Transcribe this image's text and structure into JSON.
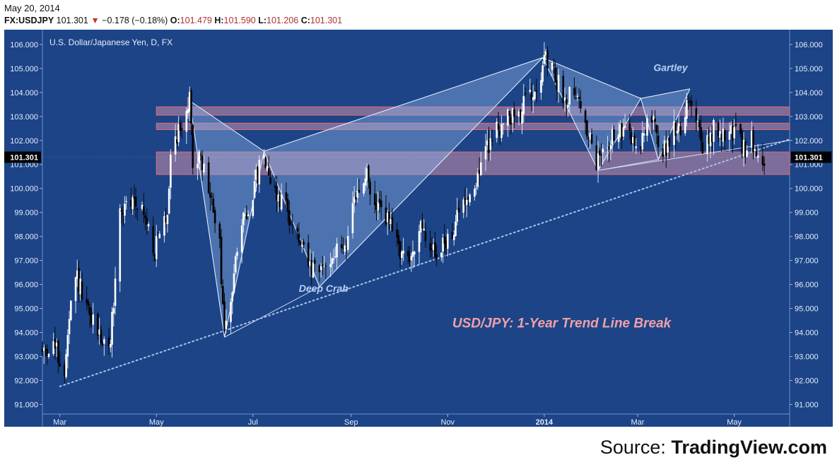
{
  "header": {
    "date": "May 20, 2014",
    "symbol": "FX:USDJPY",
    "last": "101.301",
    "change": "−0.178 (−0.18%)",
    "o_label": "O:",
    "o": "101.479",
    "h_label": "H:",
    "h": "101.590",
    "l_label": "L:",
    "l": "101.206",
    "c_label": "C:",
    "c": "101.301"
  },
  "source": {
    "prefix": "Source: ",
    "brand": "TradingView.com"
  },
  "colors": {
    "background": "#1c4487",
    "up_candle": "#ffffff",
    "down_candle": "#000000",
    "zone_fill": "#f2a0b4",
    "zone_border": "#e06a78",
    "pattern_fill": "#8fb4e6",
    "headline": "#f0a0a8",
    "last_price_bg": "#000000"
  },
  "chart_data": {
    "type": "candlestick",
    "title": "U.S. Dollar/Japanese Yen, D, FX",
    "headline": "USD/JPY: 1-Year Trend Line Break",
    "x_ticks": [
      "Mar",
      "May",
      "Jul",
      "Sep",
      "Nov",
      "2014",
      "Mar",
      "May"
    ],
    "x_tick_dates": [
      "2013-03-01",
      "2013-05-01",
      "2013-07-01",
      "2013-09-01",
      "2013-11-01",
      "2014-01-01",
      "2014-03-01",
      "2014-05-01"
    ],
    "x_range": [
      "2013-02-18",
      "2014-06-05"
    ],
    "y_ticks": [
      "91.000",
      "92.000",
      "93.000",
      "94.000",
      "95.000",
      "96.000",
      "97.000",
      "98.000",
      "99.000",
      "100.000",
      "101.000",
      "102.000",
      "103.000",
      "104.000",
      "105.000",
      "106.000"
    ],
    "ylim": [
      90.6,
      106.35
    ],
    "last_price": "101.301",
    "grid": false,
    "trend_points": [
      [
        "2013-02-18",
        93.2
      ],
      [
        "2013-02-25",
        93.5
      ],
      [
        "2013-03-04",
        92.3
      ],
      [
        "2013-03-08",
        95.0
      ],
      [
        "2013-03-12",
        96.3
      ],
      [
        "2013-03-18",
        94.8
      ],
      [
        "2013-03-25",
        94.1
      ],
      [
        "2013-04-01",
        93.1
      ],
      [
        "2013-04-04",
        95.3
      ],
      [
        "2013-04-08",
        99.0
      ],
      [
        "2013-04-12",
        99.2
      ],
      [
        "2013-04-19",
        99.6
      ],
      [
        "2013-04-25",
        98.5
      ],
      [
        "2013-04-30",
        97.4
      ],
      [
        "2013-05-08",
        99.0
      ],
      [
        "2013-05-10",
        101.6
      ],
      [
        "2013-05-15",
        102.4
      ],
      [
        "2013-05-22",
        103.6
      ],
      [
        "2013-05-24",
        101.3
      ],
      [
        "2013-05-30",
        101.0
      ],
      [
        "2013-06-05",
        99.4
      ],
      [
        "2013-06-10",
        97.5
      ],
      [
        "2013-06-13",
        94.0
      ],
      [
        "2013-06-17",
        95.0
      ],
      [
        "2013-06-20",
        97.6
      ],
      [
        "2013-06-28",
        99.2
      ],
      [
        "2013-07-05",
        100.8
      ],
      [
        "2013-07-08",
        101.5
      ],
      [
        "2013-07-15",
        99.8
      ],
      [
        "2013-07-22",
        99.3
      ],
      [
        "2013-07-29",
        97.9
      ],
      [
        "2013-08-07",
        96.5
      ],
      [
        "2013-08-12",
        96.5
      ],
      [
        "2013-08-20",
        97.2
      ],
      [
        "2013-08-28",
        97.6
      ],
      [
        "2013-09-05",
        99.8
      ],
      [
        "2013-09-11",
        100.5
      ],
      [
        "2013-09-16",
        99.1
      ],
      [
        "2013-09-20",
        99.3
      ],
      [
        "2013-09-27",
        98.2
      ],
      [
        "2013-10-07",
        96.8
      ],
      [
        "2013-10-14",
        98.3
      ],
      [
        "2013-10-22",
        97.5
      ],
      [
        "2013-10-28",
        97.4
      ],
      [
        "2013-11-05",
        98.4
      ],
      [
        "2013-11-12",
        99.6
      ],
      [
        "2013-11-18",
        100.1
      ],
      [
        "2013-11-25",
        101.6
      ],
      [
        "2013-12-03",
        102.6
      ],
      [
        "2013-12-10",
        102.9
      ],
      [
        "2013-12-17",
        103.2
      ],
      [
        "2013-12-24",
        104.1
      ],
      [
        "2014-01-02",
        105.3
      ],
      [
        "2014-01-08",
        104.6
      ],
      [
        "2014-01-14",
        103.7
      ],
      [
        "2014-01-20",
        104.3
      ],
      [
        "2014-01-27",
        102.6
      ],
      [
        "2014-02-03",
        101.0
      ],
      [
        "2014-02-10",
        102.0
      ],
      [
        "2014-02-17",
        102.3
      ],
      [
        "2014-02-24",
        102.2
      ],
      [
        "2014-03-03",
        101.6
      ],
      [
        "2014-03-07",
        103.1
      ],
      [
        "2014-03-12",
        102.5
      ],
      [
        "2014-03-17",
        101.4
      ],
      [
        "2014-03-21",
        102.2
      ],
      [
        "2014-03-28",
        102.6
      ],
      [
        "2014-04-02",
        103.9
      ],
      [
        "2014-04-07",
        103.1
      ],
      [
        "2014-04-11",
        101.4
      ],
      [
        "2014-04-18",
        102.4
      ],
      [
        "2014-04-25",
        102.2
      ],
      [
        "2014-05-01",
        102.4
      ],
      [
        "2014-05-07",
        101.6
      ],
      [
        "2014-05-12",
        102.0
      ],
      [
        "2014-05-16",
        101.4
      ],
      [
        "2014-05-20",
        101.3
      ]
    ],
    "zones": [
      {
        "low": 103.05,
        "high": 103.4,
        "from": "2013-05-01",
        "to": "2014-06-05"
      },
      {
        "low": 102.45,
        "high": 102.72,
        "from": "2013-05-01",
        "to": "2014-06-05"
      },
      {
        "low": 100.58,
        "high": 101.52,
        "from": "2013-05-01",
        "to": "2014-06-05"
      }
    ],
    "patterns": [
      {
        "name": "Deep Crab",
        "points": [
          [
            "2013-05-22",
            103.65
          ],
          [
            "2013-06-13",
            93.8
          ],
          [
            "2013-07-08",
            101.55
          ],
          [
            "2013-08-12",
            95.9
          ],
          [
            "2013-12-31",
            105.45
          ]
        ],
        "label_at": [
          "2013-07-30",
          95.7
        ]
      },
      {
        "name": "Gartley",
        "points": [
          [
            "2013-12-31",
            105.45
          ],
          [
            "2014-02-04",
            100.75
          ],
          [
            "2014-03-03",
            103.75
          ],
          [
            "2014-03-14",
            101.2
          ],
          [
            "2014-04-03",
            104.15
          ]
        ],
        "label_at": [
          "2014-03-11",
          104.9
        ]
      }
    ],
    "trend_line": {
      "from": [
        "2013-03-01",
        91.75
      ],
      "to": [
        "2014-06-05",
        102.05
      ],
      "break_point": [
        "2014-05-14",
        101.55
      ]
    },
    "headline_at": [
      "2014-01-12",
      94.2
    ]
  }
}
